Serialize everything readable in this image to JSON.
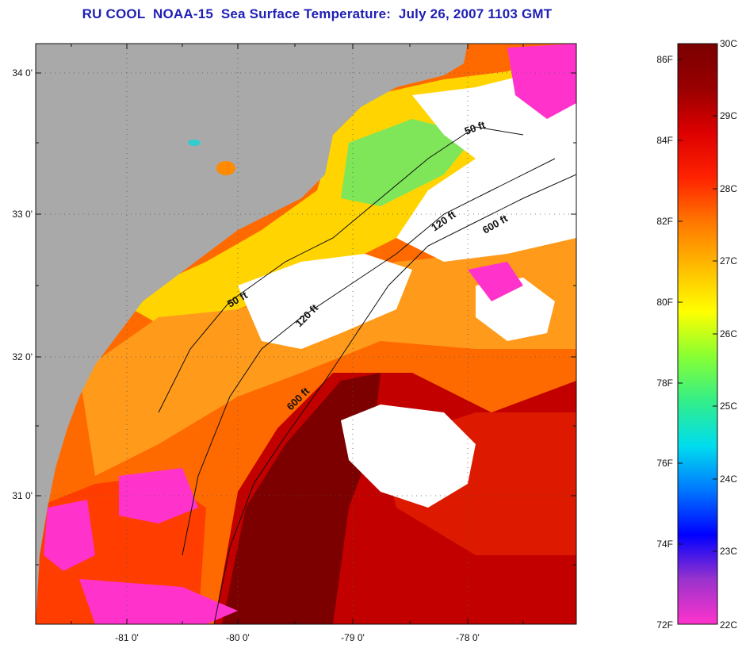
{
  "title": "RU COOL  NOAA-15  Sea Surface Temperature:  July 26, 2007 1103 GMT",
  "map": {
    "lat_labels": [
      "34 0'",
      "33 0'",
      "32 0'",
      "31 0'"
    ],
    "lon_labels": [
      "-81 0'",
      "-80 0'",
      "-79 0'",
      "-78 0'"
    ],
    "contour_labels": [
      "50 ft",
      "120 ft",
      "600 ft",
      "50 ft",
      "120 ft",
      "600 ft"
    ],
    "colors": {
      "land": "#a9a9a9",
      "cloud": "#ffffff",
      "coast_line": "#111111"
    }
  },
  "colorbar": {
    "fahrenheit_labels": [
      "86F",
      "84F",
      "82F",
      "80F",
      "78F",
      "76F",
      "74F",
      "72F"
    ],
    "celsius_labels": [
      "30C",
      "29C",
      "28C",
      "27C",
      "26C",
      "25C",
      "24C",
      "23C",
      "22C"
    ],
    "gradient": [
      "#ff33cc",
      "#9933cc",
      "#0000ff",
      "#0077ff",
      "#00ddee",
      "#33ee88",
      "#88ff33",
      "#ffff00",
      "#ffbb00",
      "#ff7700",
      "#ff2200",
      "#dd0000",
      "#990000",
      "#7a0000"
    ]
  }
}
